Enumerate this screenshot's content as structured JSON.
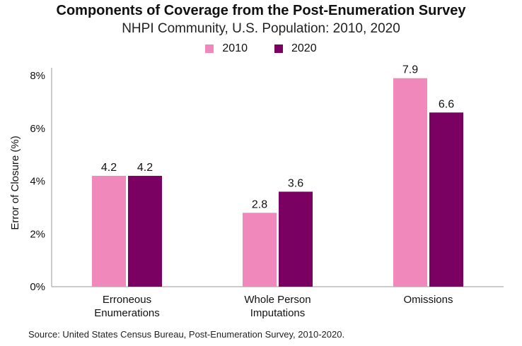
{
  "chart_data": {
    "type": "bar",
    "title": "Components of Coverage from the Post-Enumeration Survey",
    "subtitle": "NHPI Community, U.S. Population: 2010, 2020",
    "ylabel": "Error of Closure (%)",
    "xlabel": "",
    "ylim": [
      0,
      8
    ],
    "yticks": [
      "0%",
      "2%",
      "4%",
      "6%",
      "8%"
    ],
    "ytick_values": [
      0,
      2,
      4,
      6,
      8
    ],
    "categories": [
      [
        "Erroneous",
        "Enumerations"
      ],
      [
        "Whole Person",
        "Imputations"
      ],
      [
        "Omissions"
      ]
    ],
    "series": [
      {
        "name": "2010",
        "color": "#f088bc",
        "values": [
          4.2,
          2.8,
          7.9
        ]
      },
      {
        "name": "2020",
        "color": "#7a0062",
        "values": [
          4.2,
          3.6,
          6.6
        ]
      }
    ],
    "legend_position": "top-center",
    "grid": false
  },
  "source": "Source: United States Census Bureau, Post-Enumeration Survey, 2010-2020."
}
